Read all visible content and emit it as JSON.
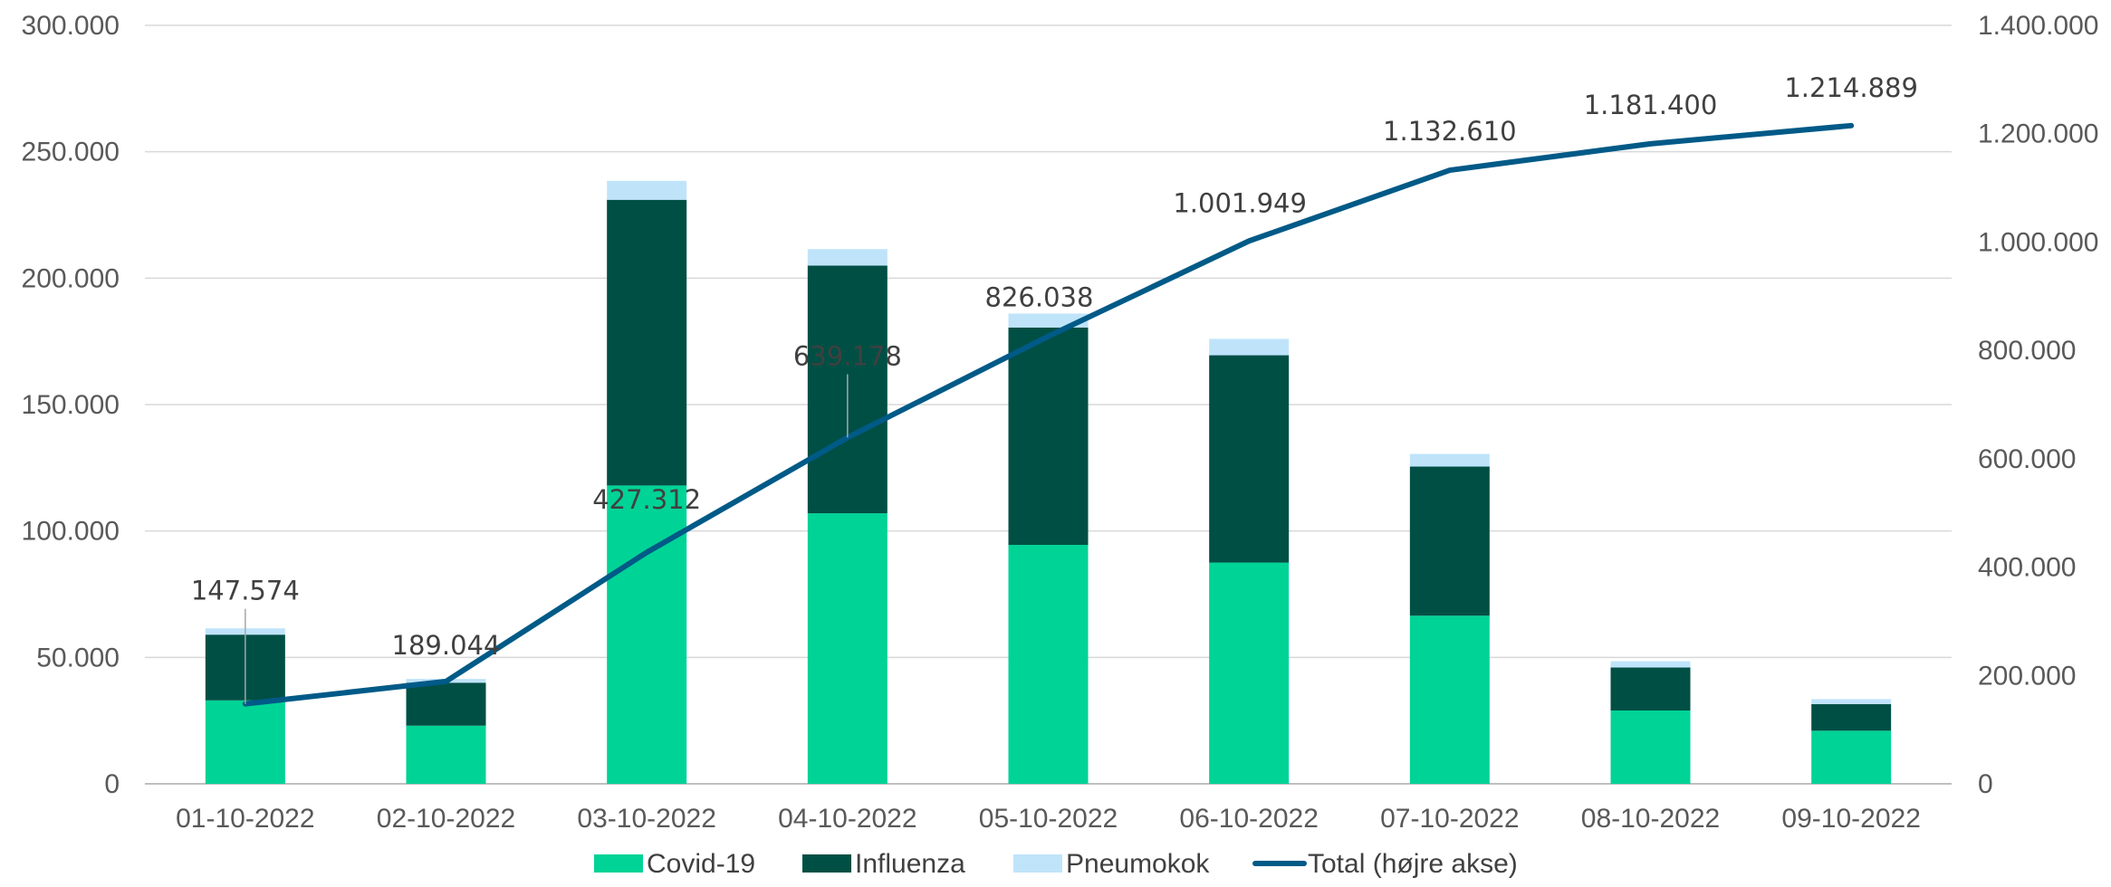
{
  "chart_data": {
    "type": "bar",
    "stacked": true,
    "categories": [
      "01-10-2022",
      "02-10-2022",
      "03-10-2022",
      "04-10-2022",
      "05-10-2022",
      "06-10-2022",
      "07-10-2022",
      "08-10-2022",
      "09-10-2022"
    ],
    "series": [
      {
        "name": "Covid-19",
        "values": [
          33000,
          23000,
          118000,
          107000,
          94500,
          87500,
          66500,
          29000,
          21000
        ],
        "color": "#00D396"
      },
      {
        "name": "Influenza",
        "values": [
          26000,
          17000,
          113000,
          98000,
          86000,
          82000,
          59000,
          17000,
          10500
        ],
        "color": "#004F45"
      },
      {
        "name": "Pneumokok",
        "values": [
          2500,
          1500,
          7500,
          6500,
          5500,
          6500,
          5000,
          2500,
          2000
        ],
        "color": "#BFE4FA"
      }
    ],
    "line_series": {
      "name": "Total (højre akse)",
      "axis": "right",
      "color": "#005A87",
      "values": [
        147574,
        189044,
        427312,
        639178,
        826038,
        1001949,
        1132610,
        1181400,
        1214889
      ],
      "labels": [
        "147.574",
        "189.044",
        "427.312",
        "639.178",
        "826.038",
        "1.001.949",
        "1.132.610",
        "1.181.400",
        "1.214.889"
      ]
    },
    "y_left": {
      "min": 0,
      "max": 300000,
      "ticks": [
        "0",
        "50.000",
        "100.000",
        "150.000",
        "200.000",
        "250.000",
        "300.000"
      ]
    },
    "y_right": {
      "min": 0,
      "max": 1400000,
      "ticks": [
        "0",
        "200.000",
        "400.000",
        "600.000",
        "800.000",
        "1.000.000",
        "1.200.000",
        "1.400.000"
      ]
    },
    "grid": true,
    "legend_position": "bottom"
  },
  "legend": [
    {
      "label": "Covid-19",
      "kind": "box",
      "color": "#00D396"
    },
    {
      "label": "Influenza",
      "kind": "box",
      "color": "#004F45"
    },
    {
      "label": "Pneumokok",
      "kind": "box",
      "color": "#BFE4FA"
    },
    {
      "label": "Total (højre akse)",
      "kind": "line",
      "color": "#005A87"
    }
  ]
}
